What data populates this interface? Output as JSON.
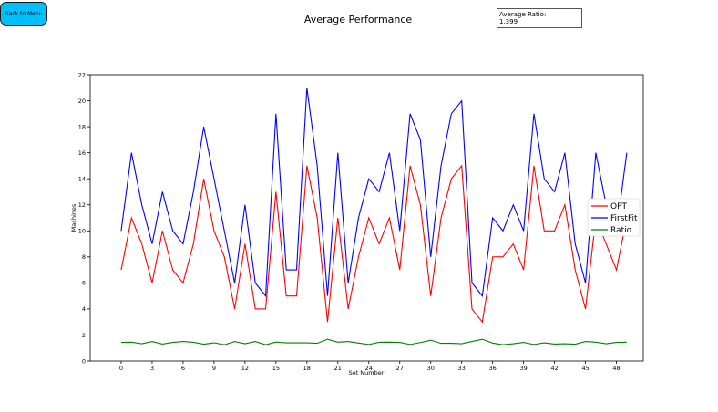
{
  "back_button": {
    "label": "Back to Menu"
  },
  "ratio_box": {
    "label": "Average Ratio:",
    "value": "1.399"
  },
  "colors": {
    "opt": "#ff0000",
    "firstfit": "#0000ff",
    "ratio": "#008000",
    "button": "#00bfff"
  },
  "chart_data": {
    "type": "line",
    "title": "Average Performance",
    "xlabel": "Set Number",
    "ylabel": "Machines",
    "xlim": [
      -3,
      50.6
    ],
    "ylim": [
      0,
      22
    ],
    "xticks": [
      0,
      3,
      6,
      9,
      12,
      15,
      18,
      21,
      24,
      27,
      30,
      33,
      36,
      39,
      42,
      45,
      48
    ],
    "yticks": [
      0,
      2,
      4,
      6,
      8,
      10,
      12,
      14,
      16,
      18,
      20,
      22
    ],
    "grid": false,
    "legend_position": "center-right",
    "x": [
      0,
      1,
      2,
      3,
      4,
      5,
      6,
      7,
      8,
      9,
      10,
      11,
      12,
      13,
      14,
      15,
      16,
      17,
      18,
      19,
      20,
      21,
      22,
      23,
      24,
      25,
      26,
      27,
      28,
      29,
      30,
      31,
      32,
      33,
      34,
      35,
      36,
      37,
      38,
      39,
      40,
      41,
      42,
      43,
      44,
      45,
      46,
      47,
      48,
      49
    ],
    "series": [
      {
        "name": "OPT",
        "color": "#ff0000",
        "values": [
          7,
          11,
          9,
          6,
          10,
          7,
          6,
          9,
          14,
          10,
          8,
          4,
          9,
          4,
          4,
          13,
          5,
          5,
          15,
          11,
          3,
          11,
          4,
          8,
          11,
          9,
          11,
          7,
          15,
          12,
          5,
          11,
          14,
          15,
          4,
          3,
          8,
          8,
          9,
          7,
          15,
          10,
          10,
          12,
          7,
          4,
          11,
          9,
          7,
          11
        ]
      },
      {
        "name": "FirstFit",
        "color": "#0000ff",
        "values": [
          10,
          16,
          12,
          9,
          13,
          10,
          9,
          13,
          18,
          14,
          10,
          6,
          12,
          6,
          5,
          19,
          7,
          7,
          21,
          15,
          5,
          16,
          6,
          11,
          14,
          13,
          16,
          10,
          19,
          17,
          8,
          15,
          19,
          20,
          6,
          5,
          11,
          10,
          12,
          10,
          19,
          14,
          13,
          16,
          9,
          6,
          16,
          12,
          10,
          16
        ]
      },
      {
        "name": "Ratio",
        "color": "#008000",
        "values": [
          1.43,
          1.45,
          1.33,
          1.5,
          1.3,
          1.43,
          1.5,
          1.44,
          1.29,
          1.4,
          1.25,
          1.5,
          1.33,
          1.5,
          1.25,
          1.46,
          1.4,
          1.4,
          1.4,
          1.36,
          1.67,
          1.45,
          1.5,
          1.38,
          1.27,
          1.44,
          1.45,
          1.43,
          1.27,
          1.42,
          1.6,
          1.36,
          1.36,
          1.33,
          1.5,
          1.67,
          1.38,
          1.25,
          1.33,
          1.43,
          1.27,
          1.4,
          1.3,
          1.33,
          1.29,
          1.5,
          1.45,
          1.33,
          1.43,
          1.45
        ]
      }
    ]
  }
}
